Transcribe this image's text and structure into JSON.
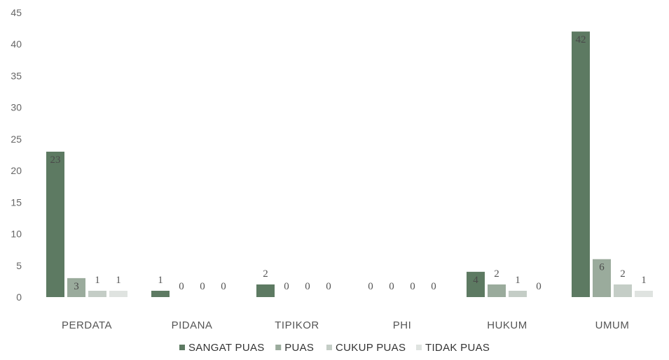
{
  "chart_data": {
    "type": "bar",
    "title": "",
    "xlabel": "",
    "ylabel": "",
    "ylim": [
      0,
      45
    ],
    "yticks": [
      "0",
      "5",
      "10",
      "15",
      "20",
      "25",
      "30",
      "35",
      "40",
      "45"
    ],
    "grid": false,
    "legend_position": "bottom",
    "categories": [
      "PERDATA",
      "PIDANA",
      "TIPIKOR",
      "PHI",
      "HUKUM",
      "UMUM"
    ],
    "series": [
      {
        "name": "SANGAT PUAS",
        "color": "#5d7a62",
        "values": [
          23,
          1,
          2,
          0,
          4,
          42
        ]
      },
      {
        "name": "PUAS",
        "color": "#9aab9c",
        "values": [
          3,
          0,
          0,
          0,
          2,
          6
        ]
      },
      {
        "name": "CUKUP PUAS",
        "color": "#c4cdc6",
        "values": [
          1,
          0,
          0,
          0,
          1,
          2
        ]
      },
      {
        "name": "TIDAK PUAS",
        "color": "#dfe3e0",
        "values": [
          1,
          0,
          0,
          0,
          0,
          1
        ]
      }
    ]
  }
}
